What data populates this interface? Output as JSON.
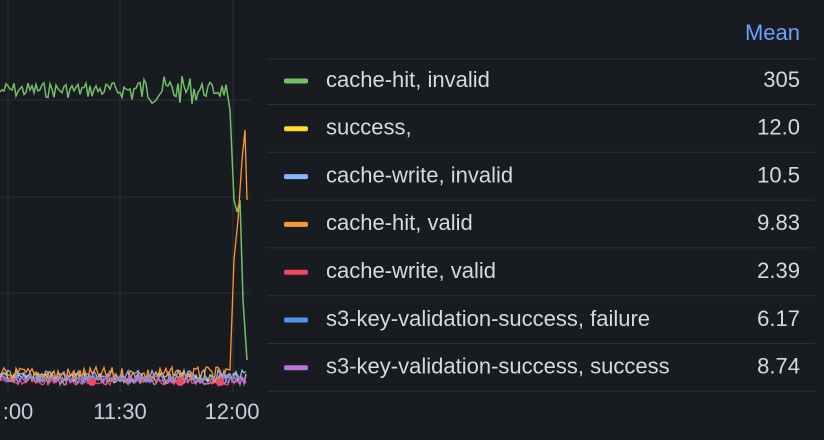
{
  "x_axis": {
    "ticks": [
      ":00",
      "11:30",
      "12:00"
    ]
  },
  "legend": {
    "header": "Mean",
    "rows": [
      {
        "name": "cache-hit, invalid",
        "color": "#73bf69",
        "mean": "305"
      },
      {
        "name": "success,",
        "color": "#fade2a",
        "mean": "12.0"
      },
      {
        "name": "cache-write, invalid",
        "color": "#8ab8ff",
        "mean": "10.5"
      },
      {
        "name": "cache-hit, valid",
        "color": "#ff9830",
        "mean": "9.83"
      },
      {
        "name": "cache-write, valid",
        "color": "#f2495c",
        "mean": "2.39"
      },
      {
        "name": "s3-key-validation-success, failure",
        "color": "#5794f2",
        "mean": "6.17"
      },
      {
        "name": "s3-key-validation-success, success",
        "color": "#b877d9",
        "mean": "8.74"
      }
    ]
  }
}
